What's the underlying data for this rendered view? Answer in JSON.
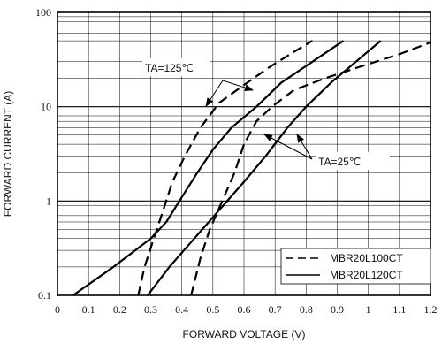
{
  "chart_data": {
    "type": "line",
    "title": "",
    "xlabel": "FORWARD VOLTAGE (V)",
    "ylabel": "FORWARD CURRENT (A)",
    "x_scale": "linear",
    "y_scale": "log",
    "xlim": [
      0,
      1.2
    ],
    "ylim": [
      0.1,
      100
    ],
    "grid": true,
    "legend_position": "bottom-right",
    "x_ticks": [
      "0",
      "0.1",
      "0.2",
      "0.3",
      "0.4",
      "0.5",
      "0.6",
      "0.7",
      "0.8",
      "0.9",
      "1",
      "1.1",
      "1.2"
    ],
    "y_ticks": [
      "0.1",
      "1",
      "10",
      "100"
    ],
    "annotations": [
      {
        "text": "TA=125℃"
      },
      {
        "text": "TA=25℃"
      }
    ],
    "series": [
      {
        "name": "MBR20L100CT",
        "style": "dashed",
        "condition": "TA=125℃",
        "color": "#000000",
        "points": [
          [
            0.26,
            0.1
          ],
          [
            0.28,
            0.2
          ],
          [
            0.31,
            0.4
          ],
          [
            0.34,
            0.8
          ],
          [
            0.37,
            1.6
          ],
          [
            0.41,
            3
          ],
          [
            0.46,
            6
          ],
          [
            0.52,
            11
          ],
          [
            0.6,
            17
          ],
          [
            0.68,
            26
          ],
          [
            0.76,
            38
          ],
          [
            0.82,
            50
          ]
        ]
      },
      {
        "name": "MBR20L100CT",
        "style": "dashed",
        "condition": "TA=25℃",
        "color": "#000000",
        "points": [
          [
            0.43,
            0.1
          ],
          [
            0.46,
            0.25
          ],
          [
            0.49,
            0.5
          ],
          [
            0.53,
            1.0
          ],
          [
            0.57,
            2
          ],
          [
            0.6,
            4
          ],
          [
            0.64,
            7
          ],
          [
            0.69,
            10
          ],
          [
            0.76,
            15
          ],
          [
            0.86,
            20
          ],
          [
            0.98,
            27
          ],
          [
            1.1,
            36
          ],
          [
            1.2,
            48
          ]
        ]
      },
      {
        "name": "MBR20L120CT",
        "style": "solid",
        "condition": "TA=125℃",
        "color": "#000000",
        "points": [
          [
            0.05,
            0.1
          ],
          [
            0.18,
            0.2
          ],
          [
            0.3,
            0.4
          ],
          [
            0.35,
            0.6
          ],
          [
            0.4,
            1.1
          ],
          [
            0.45,
            2
          ],
          [
            0.5,
            3.5
          ],
          [
            0.56,
            6
          ],
          [
            0.64,
            10
          ],
          [
            0.72,
            18
          ],
          [
            0.82,
            30
          ],
          [
            0.92,
            50
          ]
        ]
      },
      {
        "name": "MBR20L120CT",
        "style": "solid",
        "condition": "TA=25℃",
        "color": "#000000",
        "points": [
          [
            0.29,
            0.1
          ],
          [
            0.36,
            0.2
          ],
          [
            0.44,
            0.4
          ],
          [
            0.52,
            0.8
          ],
          [
            0.6,
            1.6
          ],
          [
            0.67,
            3
          ],
          [
            0.74,
            6
          ],
          [
            0.8,
            10
          ],
          [
            0.88,
            18
          ],
          [
            0.96,
            30
          ],
          [
            1.04,
            50
          ]
        ]
      }
    ]
  }
}
